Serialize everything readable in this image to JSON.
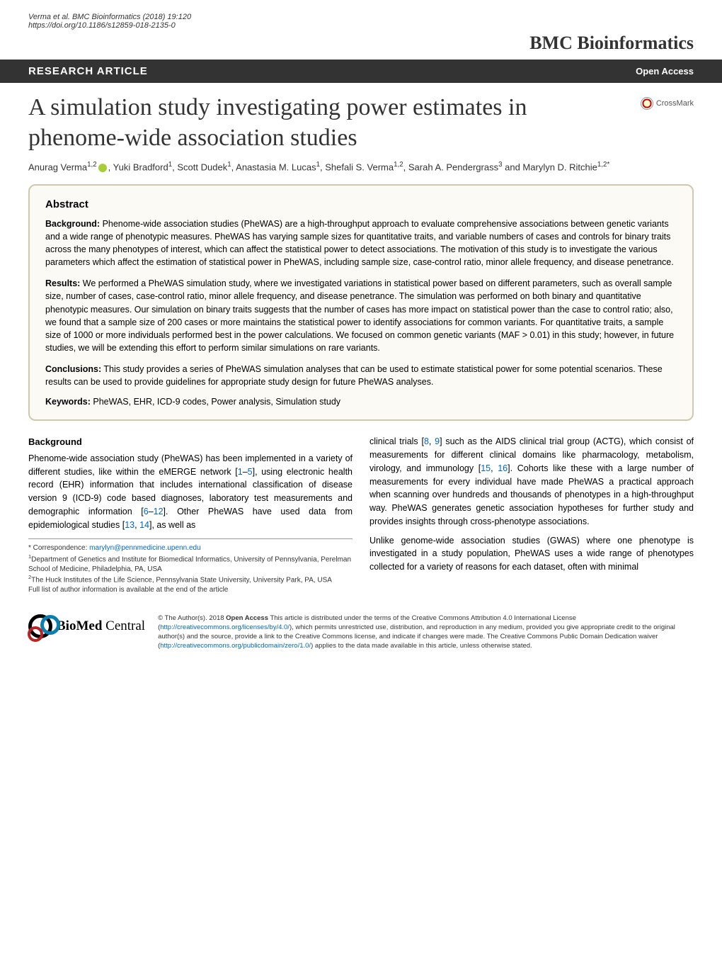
{
  "header": {
    "citation": "Verma et al. BMC Bioinformatics  (2018) 19:120",
    "doi": "https://doi.org/10.1186/s12859-018-2135-0",
    "journal": "BMC Bioinformatics"
  },
  "bar": {
    "left": "RESEARCH ARTICLE",
    "right": "Open Access"
  },
  "crossmark": "CrossMark",
  "title": "A simulation study investigating power estimates in phenome-wide association studies",
  "authors_html": "Anurag Verma<sup>1,2</sup>, Yuki Bradford<sup>1</sup>, Scott Dudek<sup>1</sup>, Anastasia M. Lucas<sup>1</sup>, Shefali S. Verma<sup>1,2</sup>, Sarah A. Pendergrass<sup>3</sup> and Marylyn D. Ritchie<sup>1,2*</sup>",
  "abstract": {
    "title": "Abstract",
    "background_label": "Background:",
    "background": " Phenome-wide association studies (PheWAS) are a high-throughput approach to evaluate comprehensive associations between genetic variants and a wide range of phenotypic measures. PheWAS has varying sample sizes for quantitative traits, and variable numbers of cases and controls for binary traits across the many phenotypes of interest, which can affect the statistical power to detect associations. The motivation of this study is to investigate the various parameters which affect the estimation of statistical power in PheWAS, including sample size, case-control ratio, minor allele frequency, and disease penetrance.",
    "results_label": "Results:",
    "results": " We performed a PheWAS simulation study, where we investigated variations in statistical power based on different parameters, such as overall sample size, number of cases, case-control ratio, minor allele frequency, and disease penetrance. The simulation was performed on both binary and quantitative phenotypic measures. Our simulation on binary traits suggests that the number of cases has more impact on statistical power than the case to control ratio; also, we found that a sample size of 200 cases or more maintains the statistical power to identify associations for common variants. For quantitative traits, a sample size of 1000 or more individuals performed best in the power calculations. We focused on common genetic variants (MAF > 0.01) in this study; however, in future studies, we will be extending this effort to perform similar simulations on rare variants.",
    "conclusions_label": "Conclusions:",
    "conclusions": " This study provides a series of PheWAS simulation analyses that can be used to estimate statistical power for some potential scenarios. These results can be used to provide guidelines for appropriate study design for future PheWAS analyses.",
    "keywords_label": "Keywords:",
    "keywords": " PheWAS, EHR, ICD-9 codes, Power analysis, Simulation study"
  },
  "body": {
    "background_heading": "Background",
    "left_p1a": "Phenome-wide association study (PheWAS) has been implemented in a variety of different studies, like within the eMERGE network [",
    "ref1": "1",
    "dash1": "–",
    "ref5": "5",
    "left_p1b": "], using electronic health record (EHR) information that includes international classification of disease version 9 (ICD-9) code based diagnoses, laboratory test measurements and demographic information [",
    "ref6": "6",
    "dash2": "–",
    "ref12": "12",
    "left_p1c": "]. Other PheWAS have used data from epidemiological studies [",
    "ref13": "13",
    "comma1": ", ",
    "ref14": "14",
    "left_p1d": "], as well as",
    "right_p1a": "clinical trials [",
    "ref8": "8",
    "comma2": ", ",
    "ref9": "9",
    "right_p1b": "] such as the AIDS clinical trial group (ACTG), which consist of measurements for different clinical domains like pharmacology, metabolism, virology, and immunology [",
    "ref15": "15",
    "comma3": ", ",
    "ref16": "16",
    "right_p1c": "]. Cohorts like these with a large number of measurements for every individual have made PheWAS a practical approach when scanning over hundreds and thousands of phenotypes in a high-throughput way. PheWAS generates genetic association hypotheses for further study and provides insights through cross-phenotype associations.",
    "right_p2": "Unlike genome-wide association studies (GWAS) where one phenotype is investigated in a study population, PheWAS uses a wide range of phenotypes collected for a variety of reasons for each dataset, often with minimal"
  },
  "footnotes": {
    "correspondence_label": "* Correspondence: ",
    "email": "marylyn@pennmedicine.upenn.edu",
    "aff1": "Department of Genetics and Institute for Biomedical Informatics, University of Pennsylvania, Perelman School of Medicine, Philadelphia, PA, USA",
    "aff2": "The Huck Institutes of the Life Science, Pennsylvania State University, University Park, PA, USA",
    "full_list": "Full list of author information is available at the end of the article"
  },
  "footer": {
    "bmc1": "BioMed",
    "bmc2": " Central",
    "license_a": "© The Author(s). 2018 ",
    "license_bold": "Open Access",
    "license_b": " This article is distributed under the terms of the Creative Commons Attribution 4.0 International License (",
    "license_url1": "http://creativecommons.org/licenses/by/4.0/",
    "license_c": "), which permits unrestricted use, distribution, and reproduction in any medium, provided you give appropriate credit to the original author(s) and the source, provide a link to the Creative Commons license, and indicate if changes were made. The Creative Commons Public Domain Dedication waiver (",
    "license_url2": "http://creativecommons.org/publicdomain/zero/1.0/",
    "license_d": ") applies to the data made available in this article, unless otherwise stated."
  }
}
